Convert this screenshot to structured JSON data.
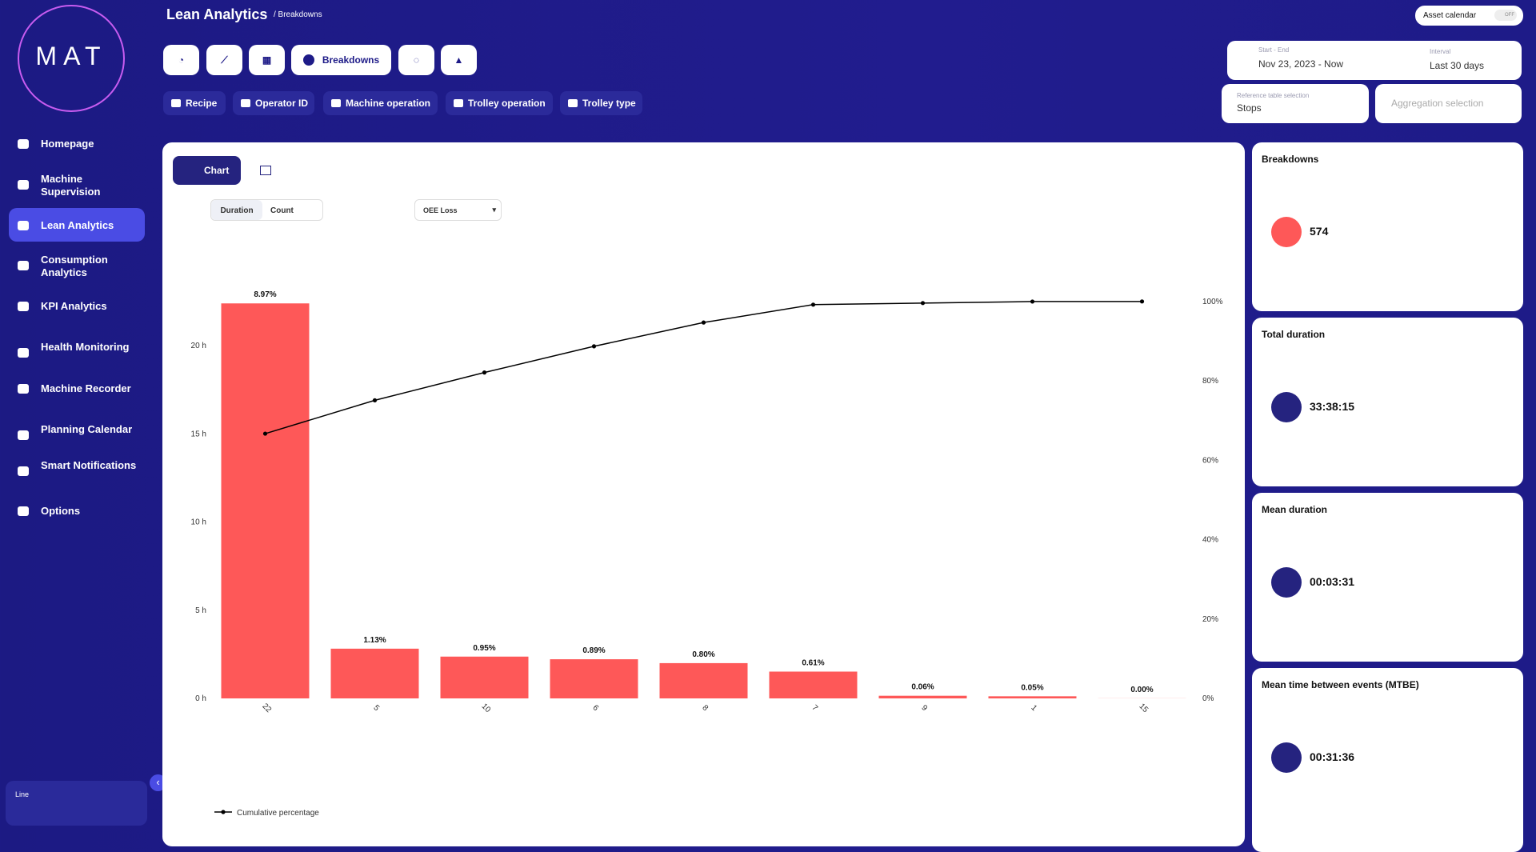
{
  "app": {
    "logo": "MAT",
    "nav": [
      "Homepage",
      "Machine Supervision",
      "Lean Analytics",
      "Consumption Analytics",
      "KPI Analytics",
      "Health Monitoring",
      "Machine Recorder",
      "Planning Calendar",
      "Smart Notifications",
      "Options"
    ],
    "active_nav": "Lean Analytics",
    "footer_label": "Line"
  },
  "header": {
    "title": "Lean Analytics",
    "breadcrumb": "/ Breakdowns",
    "asset_calendar": "Asset calendar",
    "toggle": "OFF",
    "active_tab": "Breakdowns",
    "filters": [
      "Recipe",
      "Operator ID",
      "Machine operation",
      "Trolley operation",
      "Trolley type"
    ],
    "date_label": "Start - End",
    "date_value": "Nov 23, 2023 - Now",
    "interval_label": "Interval",
    "interval_value": "Last 30 days",
    "reference_label": "Reference table selection",
    "reference_value": "Stops",
    "aggregation_placeholder": "Aggregation selection"
  },
  "chart_panel": {
    "view_button": "Chart",
    "metric_options": [
      "Duration",
      "Count"
    ],
    "loss_select": "OEE Loss"
  },
  "chart_data": {
    "type": "bar",
    "categories": [
      "22",
      "5",
      "10",
      "6",
      "8",
      "7",
      "9",
      "1",
      "15"
    ],
    "series": [
      {
        "type": "bar",
        "color": "#fe5858",
        "values": [
          22.4,
          2.82,
          2.37,
          2.22,
          2.0,
          1.52,
          0.15,
          0.12,
          0.005
        ]
      },
      {
        "type": "line",
        "name": "Cumulative percentage",
        "axis": "y2",
        "color": "#000000",
        "values": [
          66.7,
          75.1,
          82.1,
          88.7,
          94.7,
          99.2,
          99.6,
          99.98,
          100
        ]
      }
    ],
    "oee_loss": {
      "values": [
        8.97,
        1.13,
        0.95,
        0.89,
        0.8,
        0.61,
        0.06,
        0.05,
        0.0
      ],
      "value_labels": [
        "8.97%",
        "1.13%",
        "0.95%",
        "0.89%",
        "0.80%",
        "0.61%",
        "0.06%",
        "0.05%",
        "0.00%"
      ]
    },
    "ylim": [
      0,
      23.5
    ],
    "yticks": [
      {
        "value": 0,
        "label": "0 h"
      },
      {
        "value": 5,
        "label": "5 h"
      },
      {
        "value": 10,
        "label": "10 h"
      },
      {
        "value": 15,
        "label": "15 h"
      },
      {
        "value": 20,
        "label": "20 h"
      }
    ],
    "y2lim": [
      0,
      104.4
    ],
    "y2ticks": [
      {
        "value": 0,
        "label": "0%"
      },
      {
        "value": 20,
        "label": "20%"
      },
      {
        "value": 40,
        "label": "40%"
      },
      {
        "value": 60,
        "label": "60%"
      },
      {
        "value": 80,
        "label": "80%"
      },
      {
        "value": 100,
        "label": "100%"
      }
    ],
    "legend": "bottom-left"
  },
  "kpis": [
    {
      "title": "Breakdowns",
      "value": 574
    },
    {
      "title": "Total duration",
      "value": "33:38:15"
    },
    {
      "title": "Mean duration",
      "value": "00:03:31"
    },
    {
      "title": "Mean time between events (MTBE)",
      "value": "00:31:36"
    }
  ]
}
